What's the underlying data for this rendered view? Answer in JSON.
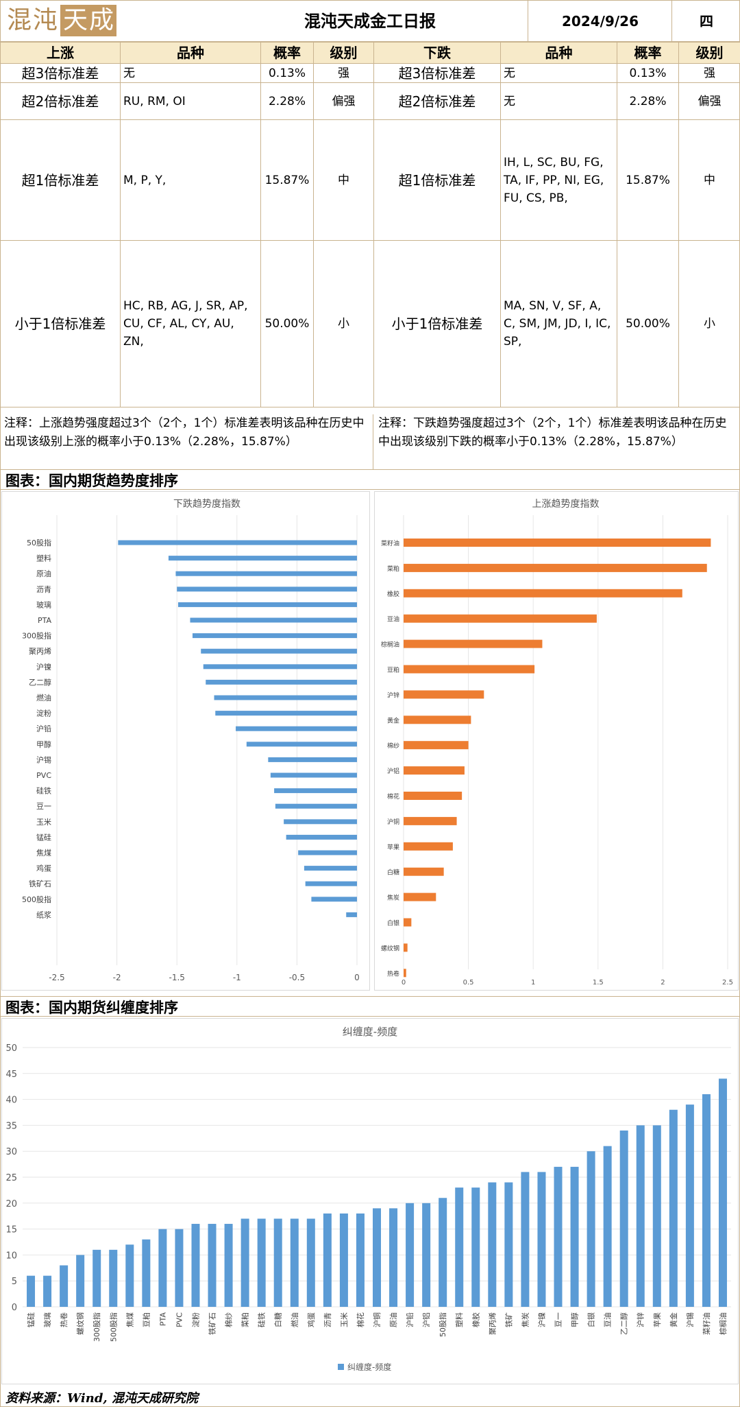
{
  "header": {
    "logo_text": [
      "混",
      "沌",
      "天",
      "成"
    ],
    "title": "混沌天成金工日报",
    "date": "2024/9/26",
    "weekday": "四"
  },
  "table": {
    "headers": [
      "上涨",
      "品种",
      "概率",
      "级别",
      "下跌",
      "品种",
      "概率",
      "级别"
    ],
    "rows": [
      {
        "up_label": "超3倍标准差",
        "up_items": "无",
        "up_prob": "0.13%",
        "up_level": "强",
        "down_label": "超3倍标准差",
        "down_items": "无",
        "down_prob": "0.13%",
        "down_level": "强"
      },
      {
        "up_label": "超2倍标准差",
        "up_items": "RU, RM, OI",
        "up_prob": "2.28%",
        "up_level": "偏强",
        "down_label": "超2倍标准差",
        "down_items": "无",
        "down_prob": "2.28%",
        "down_level": "偏强"
      },
      {
        "up_label": "超1倍标准差",
        "up_items": "M, P, Y,",
        "up_prob": "15.87%",
        "up_level": "中",
        "down_label": "超1倍标准差",
        "down_items": "IH, L, SC, BU, FG, TA, IF, PP, NI, EG, FU, CS, PB,",
        "down_prob": "15.87%",
        "down_level": "中"
      },
      {
        "up_label": "小于1倍标准差",
        "up_items": "HC, RB, AG, J, SR, AP, CU, CF, AL, CY, AU, ZN,",
        "up_prob": "50.00%",
        "up_level": "小",
        "down_label": "小于1倍标准差",
        "down_items": "MA, SN, V, SF, A, C, SM, JM, JD, I, IC, SP,",
        "down_prob": "50.00%",
        "down_level": "小"
      }
    ],
    "note_left": "注释：上涨趋势强度超过3个（2个，1个）标准差表明该品种在历史中出现该级别上涨的概率小于0.13%（2.28%，15.87%）",
    "note_right": "注释：下跌趋势强度超过3个（2个，1个）标准差表明该品种在历史中出现该级别下跌的概率小于0.13%（2.28%，15.87%）"
  },
  "section1_title": "图表：国内期货趋势度排序",
  "section2_title": "图表：国内期货纠缠度排序",
  "footer": "资料来源：Wind, 混沌天成研究院",
  "colors": {
    "blue": "#5b9bd5",
    "orange": "#ed7d31",
    "border": "#c9b38f"
  },
  "chart_data": [
    {
      "type": "bar",
      "orientation": "horizontal",
      "title": "下跌趋势度指数",
      "categories": [
        "50股指",
        "塑料",
        "原油",
        "沥青",
        "玻璃",
        "PTA",
        "300股指",
        "聚丙烯",
        "沪镍",
        "乙二醇",
        "燃油",
        "淀粉",
        "沪铅",
        "甲醇",
        "沪锡",
        "PVC",
        "硅铁",
        "豆一",
        "玉米",
        "锰硅",
        "焦煤",
        "鸡蛋",
        "铁矿石",
        "500股指",
        "纸浆"
      ],
      "values": [
        -1.99,
        -1.57,
        -1.51,
        -1.5,
        -1.49,
        -1.39,
        -1.37,
        -1.3,
        -1.28,
        -1.26,
        -1.19,
        -1.18,
        -1.01,
        -0.92,
        -0.74,
        -0.72,
        -0.69,
        -0.68,
        -0.61,
        -0.59,
        -0.49,
        -0.44,
        -0.43,
        -0.38,
        -0.09
      ],
      "xlim": [
        -2.5,
        0
      ],
      "xticks": [
        "-2.5",
        "-2",
        "-1.5",
        "-1",
        "-0.5",
        "0"
      ],
      "grid": true
    },
    {
      "type": "bar",
      "orientation": "horizontal",
      "title": "上涨趋势度指数",
      "categories": [
        "菜籽油",
        "菜粕",
        "橡胶",
        "豆油",
        "棕榈油",
        "豆粕",
        "沪锌",
        "黄金",
        "棉纱",
        "沪铝",
        "棉花",
        "沪铜",
        "苹果",
        "白糖",
        "焦炭",
        "白银",
        "螺纹钢",
        "热卷"
      ],
      "values": [
        2.37,
        2.34,
        2.15,
        1.49,
        1.07,
        1.01,
        0.62,
        0.52,
        0.5,
        0.47,
        0.45,
        0.41,
        0.38,
        0.31,
        0.25,
        0.06,
        0.03,
        0.02
      ],
      "xlim": [
        0,
        2.5
      ],
      "xticks": [
        "0",
        "0.5",
        "1",
        "1.5",
        "2",
        "2.5"
      ],
      "grid": true
    },
    {
      "type": "bar",
      "title": "纠缠度-频度",
      "legend": "纠缠度-频度",
      "categories": [
        "锰硅",
        "玻璃",
        "热卷",
        "螺纹钢",
        "300股指",
        "500股指",
        "焦煤",
        "豆粕",
        "PTA",
        "PVC",
        "淀粉",
        "铁矿石",
        "棉纱",
        "菜粕",
        "硅铁",
        "白糖",
        "燃油",
        "鸡蛋",
        "沥青",
        "玉米",
        "棉花",
        "沪铜",
        "原油",
        "沪铅",
        "沪铝",
        "50股指",
        "塑料",
        "橡胶",
        "聚丙烯",
        "铁矿",
        "焦炭",
        "沪镍",
        "豆一",
        "甲醇",
        "白银",
        "豆油",
        "乙二醇",
        "沪锌",
        "苹果",
        "黄金",
        "沪锡",
        "菜籽油",
        "棕榈油"
      ],
      "values": [
        6,
        6,
        8,
        10,
        11,
        11,
        12,
        13,
        15,
        15,
        16,
        16,
        16,
        17,
        17,
        17,
        17,
        17,
        18,
        18,
        18,
        19,
        19,
        20,
        20,
        21,
        23,
        23,
        24,
        24,
        26,
        26,
        27,
        27,
        30,
        31,
        34,
        35,
        35,
        38,
        39,
        41,
        44
      ],
      "ylim": [
        0,
        50
      ],
      "yticks": [
        "0",
        "5",
        "10",
        "15",
        "20",
        "25",
        "30",
        "35",
        "40",
        "45",
        "50"
      ],
      "grid": true
    }
  ]
}
